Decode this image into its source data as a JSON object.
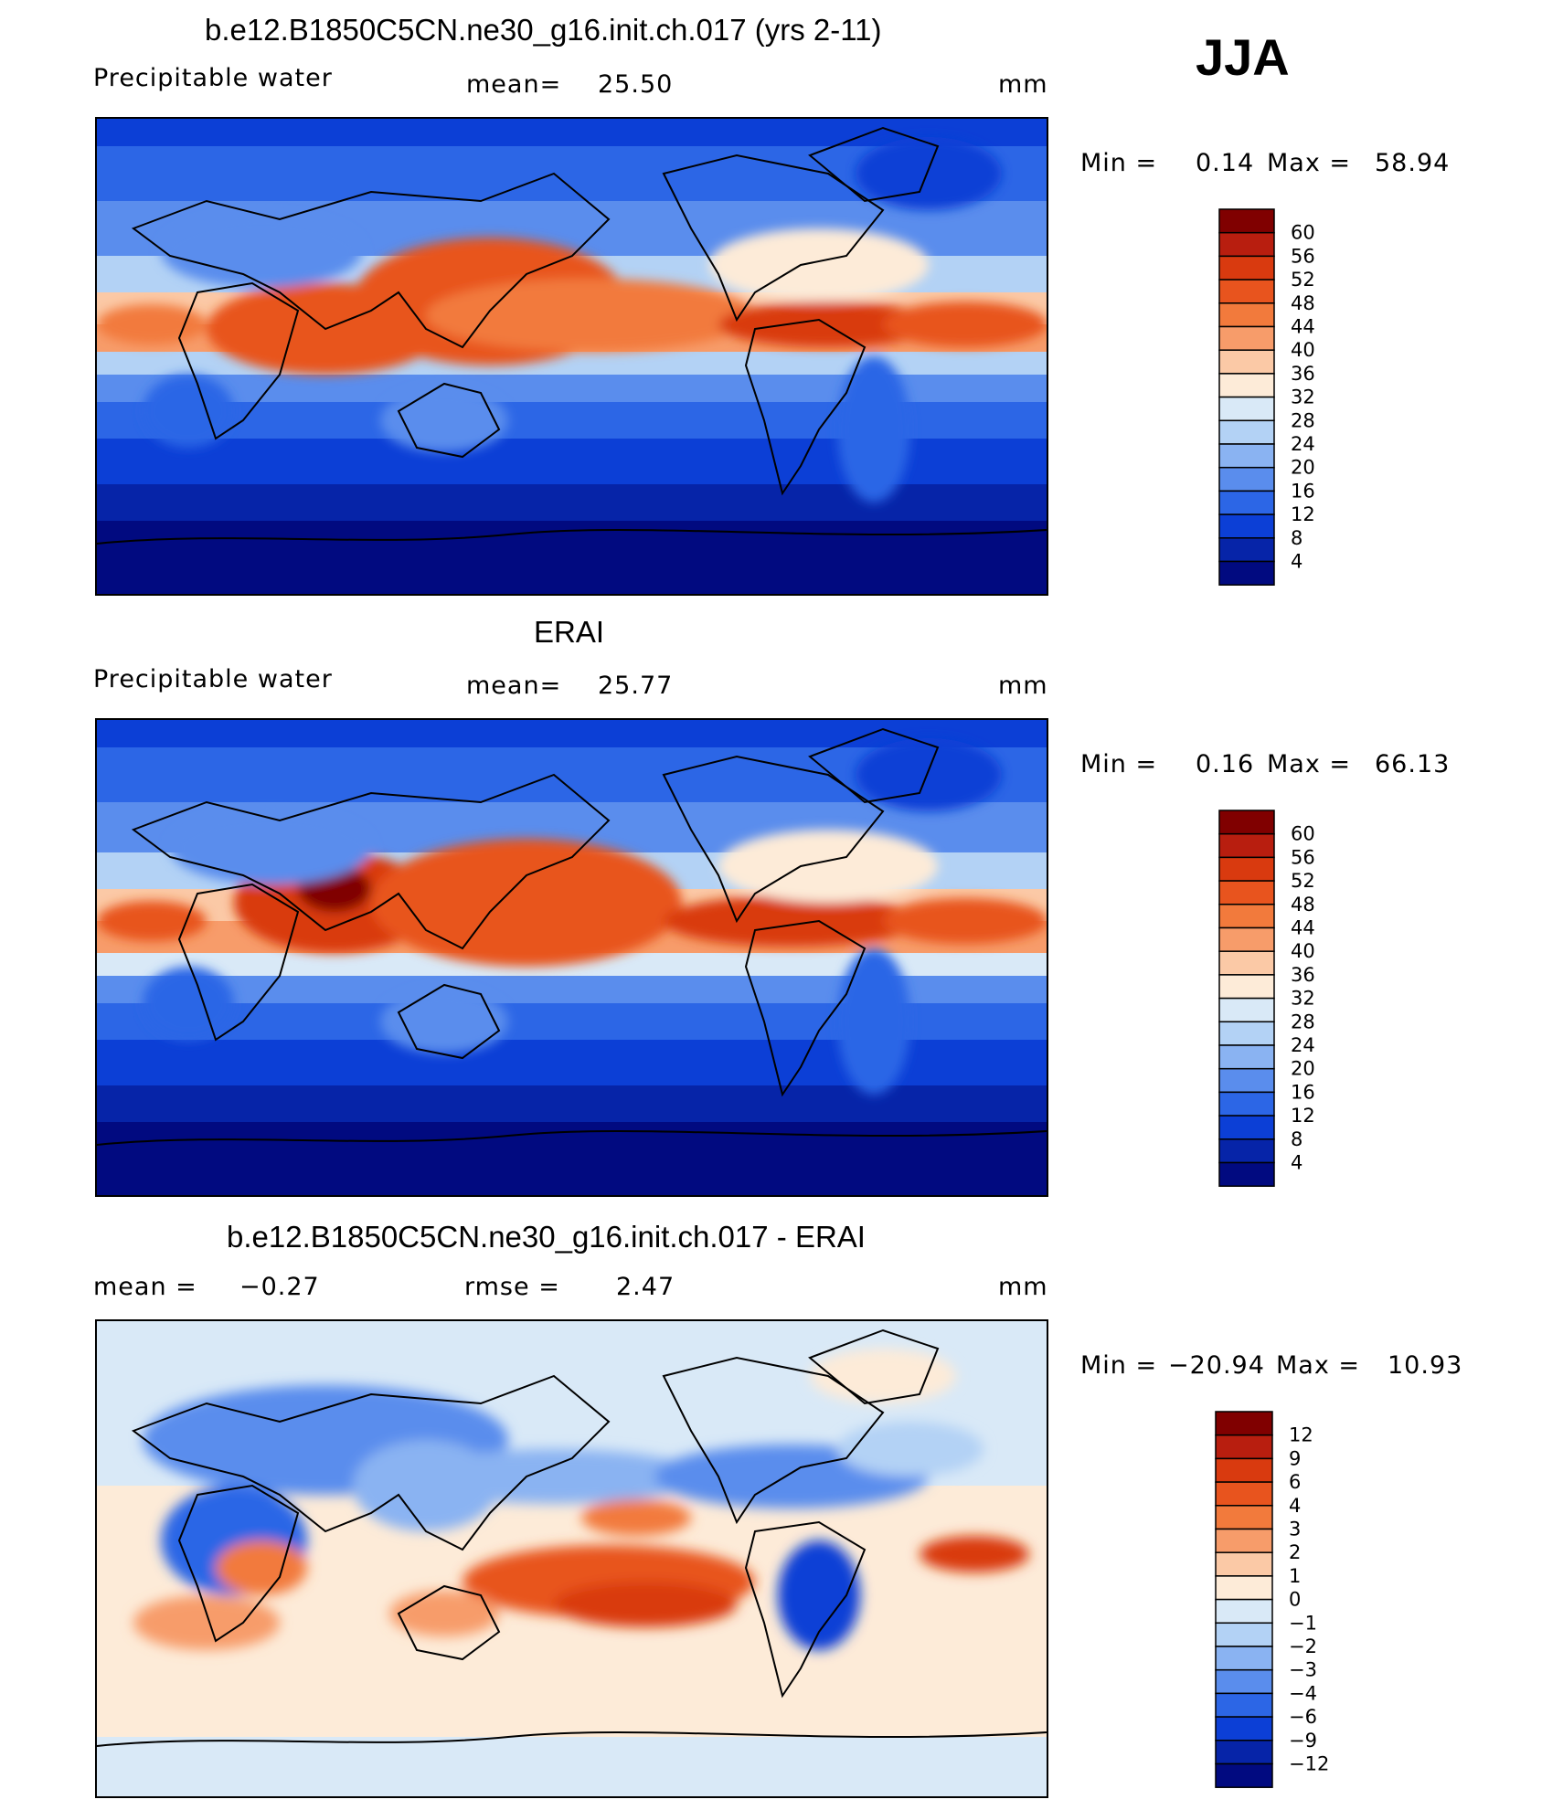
{
  "season": "JJA",
  "chart_data": [
    {
      "type": "heatmap",
      "title": "b.e12.B1850C5CN.ne30_g16.init.ch.017 (yrs 2-11)",
      "variable": "Precipitable water",
      "mean_label": "mean=",
      "mean_value": "25.50",
      "units": "mm",
      "min_label": "Min =",
      "min_value": "0.14",
      "max_label": "Max =",
      "max_value": "58.94",
      "colorbar_levels": [
        "60",
        "56",
        "52",
        "48",
        "44",
        "40",
        "36",
        "32",
        "28",
        "24",
        "20",
        "16",
        "12",
        "8",
        "4"
      ],
      "colors": [
        "#800000",
        "#b81e0f",
        "#d93a0f",
        "#e8541e",
        "#f27a3c",
        "#f79c6a",
        "#fbc9a6",
        "#fdebd8",
        "#d9e9f7",
        "#b3d2f5",
        "#8ab3f2",
        "#5a8ded",
        "#2c66e6",
        "#0c3fd6",
        "#0624a8",
        "#010a80"
      ]
    },
    {
      "type": "heatmap",
      "title": "ERAI",
      "variable": "Precipitable water",
      "mean_label": "mean=",
      "mean_value": "25.77",
      "units": "mm",
      "min_label": "Min =",
      "min_value": "0.16",
      "max_label": "Max =",
      "max_value": "66.13",
      "colorbar_levels": [
        "60",
        "56",
        "52",
        "48",
        "44",
        "40",
        "36",
        "32",
        "28",
        "24",
        "20",
        "16",
        "12",
        "8",
        "4"
      ],
      "colors": [
        "#800000",
        "#b81e0f",
        "#d93a0f",
        "#e8541e",
        "#f27a3c",
        "#f79c6a",
        "#fbc9a6",
        "#fdebd8",
        "#d9e9f7",
        "#b3d2f5",
        "#8ab3f2",
        "#5a8ded",
        "#2c66e6",
        "#0c3fd6",
        "#0624a8",
        "#010a80"
      ]
    },
    {
      "type": "heatmap",
      "title": "b.e12.B1850C5CN.ne30_g16.init.ch.017 - ERAI",
      "mean_label": "mean =",
      "mean_value": "−0.27",
      "rmse_label": "rmse =",
      "rmse_value": "2.47",
      "units": "mm",
      "min_label": "Min =",
      "min_value": "−20.94",
      "max_label": "Max =",
      "max_value": "10.93",
      "colorbar_levels": [
        "12",
        "9",
        "6",
        "4",
        "3",
        "2",
        "1",
        "0",
        "−1",
        "−2",
        "−3",
        "−4",
        "−6",
        "−9",
        "−12"
      ],
      "colors": [
        "#800000",
        "#b81e0f",
        "#d93a0f",
        "#e8541e",
        "#f27a3c",
        "#f79c6a",
        "#fbc9a6",
        "#fdebd8",
        "#d9e9f7",
        "#b3d2f5",
        "#8ab3f2",
        "#5a8ded",
        "#2c66e6",
        "#0c3fd6",
        "#0624a8",
        "#010a80"
      ]
    }
  ]
}
